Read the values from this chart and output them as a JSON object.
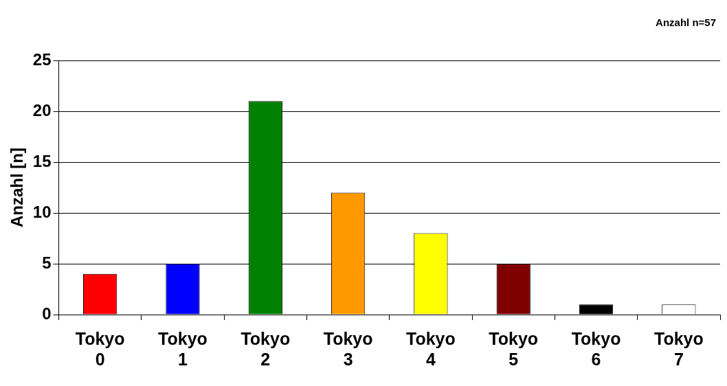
{
  "chart_data": {
    "type": "bar",
    "ylabel": "Anzahl [n]",
    "annotations": [
      "Anzahl n=57"
    ],
    "categories": [
      "Tokyo 0",
      "Tokyo 1",
      "Tokyo 2",
      "Tokyo 3",
      "Tokyo 4",
      "Tokyo 5",
      "Tokyo 6",
      "Tokyo 7"
    ],
    "values": [
      4,
      5,
      21,
      12,
      8,
      5,
      1,
      1
    ],
    "colors": [
      "#ff0000",
      "#0000ff",
      "#008000",
      "#ff9900",
      "#ffff00",
      "#800000",
      "#000000",
      "#ffffff"
    ],
    "ylim": [
      0,
      25
    ],
    "yticks": [
      0,
      5,
      10,
      15,
      20,
      25
    ],
    "grid": "y",
    "legend": false
  }
}
